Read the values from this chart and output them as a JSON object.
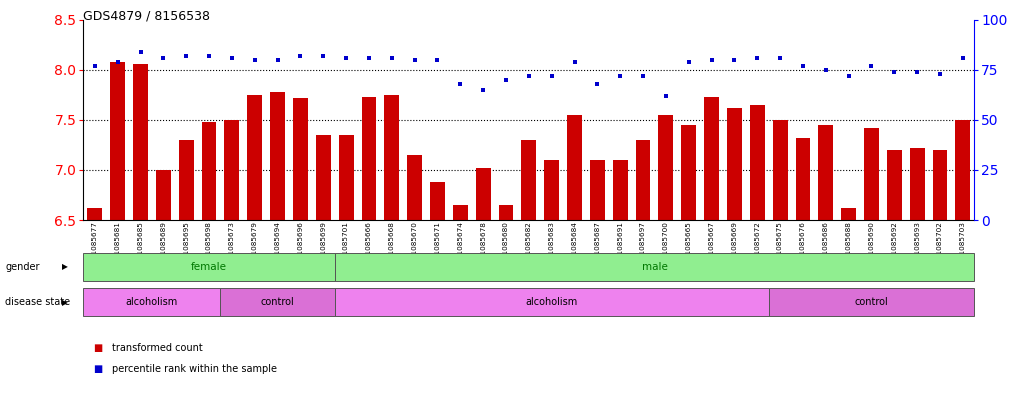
{
  "title": "GDS4879 / 8156538",
  "samples": [
    "GSM1085677",
    "GSM1085681",
    "GSM1085685",
    "GSM1085689",
    "GSM1085695",
    "GSM1085698",
    "GSM1085673",
    "GSM1085679",
    "GSM1085694",
    "GSM1085696",
    "GSM1085699",
    "GSM1085701",
    "GSM1085666",
    "GSM1085668",
    "GSM1085670",
    "GSM1085671",
    "GSM1085674",
    "GSM1085678",
    "GSM1085680",
    "GSM1085682",
    "GSM1085683",
    "GSM1085684",
    "GSM1085687",
    "GSM1085691",
    "GSM1085697",
    "GSM1085700",
    "GSM1085665",
    "GSM1085667",
    "GSM1085669",
    "GSM1085672",
    "GSM1085675",
    "GSM1085676",
    "GSM1085686",
    "GSM1085688",
    "GSM1085690",
    "GSM1085692",
    "GSM1085693",
    "GSM1085702",
    "GSM1085703"
  ],
  "bar_values": [
    6.62,
    8.08,
    8.06,
    7.0,
    7.3,
    7.48,
    7.5,
    7.75,
    7.78,
    7.72,
    7.35,
    7.35,
    7.73,
    7.75,
    7.15,
    6.88,
    6.65,
    7.02,
    6.65,
    7.3,
    7.1,
    7.55,
    7.1,
    7.1,
    7.3,
    7.55,
    7.45,
    7.73,
    7.62,
    7.65,
    7.5,
    7.32,
    7.45,
    6.62,
    7.42,
    7.2,
    7.22,
    7.2,
    7.5
  ],
  "dot_percentiles": [
    77,
    79,
    84,
    81,
    82,
    82,
    81,
    80,
    80,
    82,
    82,
    81,
    81,
    81,
    80,
    80,
    68,
    65,
    70,
    72,
    72,
    79,
    68,
    72,
    72,
    62,
    79,
    80,
    80,
    81,
    81,
    77,
    75,
    72,
    77,
    74,
    74,
    73,
    81
  ],
  "ylim_left": [
    6.5,
    8.5
  ],
  "ylim_right": [
    0,
    100
  ],
  "yticks_left": [
    6.5,
    7.0,
    7.5,
    8.0,
    8.5
  ],
  "yticks_right": [
    0,
    25,
    50,
    75,
    100
  ],
  "bar_color": "#cc0000",
  "dot_color": "#0000cc",
  "ytick_grid": [
    7.0,
    7.5,
    8.0
  ],
  "gender_female_count": 11,
  "disease_alc1_count": 6,
  "disease_ctrl1_count": 5,
  "disease_alc2_count": 19,
  "disease_ctrl2_count": 9,
  "female_color": "#90ee90",
  "male_color": "#90ee90",
  "alcoholism_color": "#ee82ee",
  "control_color": "#da70d6",
  "female_text_color": "#007700",
  "male_text_color": "#007700"
}
